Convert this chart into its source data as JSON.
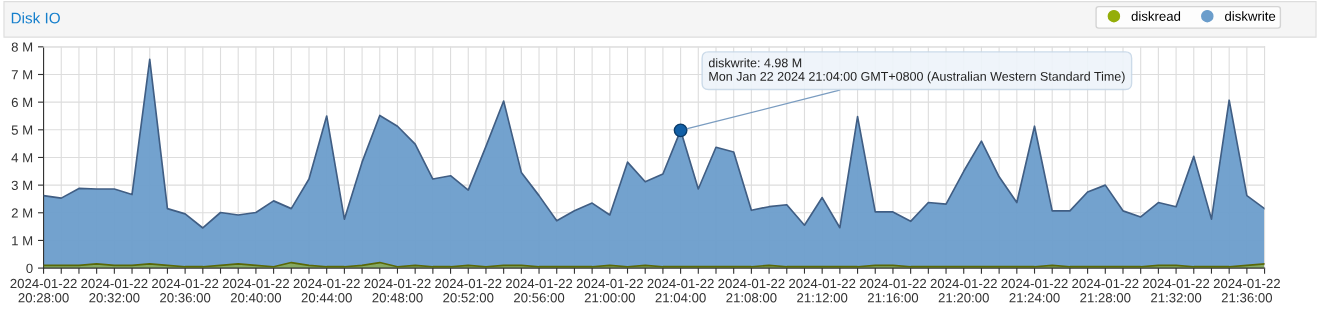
{
  "chart_data": {
    "type": "area",
    "title": "Disk IO",
    "x": [
      "2024-01-22T20:28",
      "2024-01-22T20:29",
      "2024-01-22T20:30",
      "2024-01-22T20:31",
      "2024-01-22T20:32",
      "2024-01-22T20:33",
      "2024-01-22T20:34",
      "2024-01-22T20:35",
      "2024-01-22T20:36",
      "2024-01-22T20:37",
      "2024-01-22T20:38",
      "2024-01-22T20:39",
      "2024-01-22T20:40",
      "2024-01-22T20:41",
      "2024-01-22T20:42",
      "2024-01-22T20:43",
      "2024-01-22T20:44",
      "2024-01-22T20:45",
      "2024-01-22T20:46",
      "2024-01-22T20:47",
      "2024-01-22T20:48",
      "2024-01-22T20:49",
      "2024-01-22T20:50",
      "2024-01-22T20:51",
      "2024-01-22T20:52",
      "2024-01-22T20:53",
      "2024-01-22T20:54",
      "2024-01-22T20:55",
      "2024-01-22T20:56",
      "2024-01-22T20:57",
      "2024-01-22T20:58",
      "2024-01-22T20:59",
      "2024-01-22T21:00",
      "2024-01-22T21:01",
      "2024-01-22T21:02",
      "2024-01-22T21:03",
      "2024-01-22T21:04",
      "2024-01-22T21:05",
      "2024-01-22T21:06",
      "2024-01-22T21:07",
      "2024-01-22T21:08",
      "2024-01-22T21:09",
      "2024-01-22T21:10",
      "2024-01-22T21:11",
      "2024-01-22T21:12",
      "2024-01-22T21:13",
      "2024-01-22T21:14",
      "2024-01-22T21:15",
      "2024-01-22T21:16",
      "2024-01-22T21:17",
      "2024-01-22T21:18",
      "2024-01-22T21:19",
      "2024-01-22T21:20",
      "2024-01-22T21:21",
      "2024-01-22T21:22",
      "2024-01-22T21:23",
      "2024-01-22T21:24",
      "2024-01-22T21:25",
      "2024-01-22T21:26",
      "2024-01-22T21:27",
      "2024-01-22T21:28",
      "2024-01-22T21:29",
      "2024-01-22T21:30",
      "2024-01-22T21:31",
      "2024-01-22T21:32",
      "2024-01-22T21:33",
      "2024-01-22T21:34",
      "2024-01-22T21:35",
      "2024-01-22T21:36",
      "2024-01-22T21:37"
    ],
    "series": [
      {
        "name": "diskread",
        "color": "#94ae0a",
        "values": [
          0.1,
          0.1,
          0.1,
          0.15,
          0.1,
          0.1,
          0.15,
          0.1,
          0.05,
          0.05,
          0.1,
          0.15,
          0.1,
          0.05,
          0.2,
          0.1,
          0.05,
          0.05,
          0.1,
          0.2,
          0.05,
          0.1,
          0.05,
          0.05,
          0.1,
          0.05,
          0.1,
          0.1,
          0.05,
          0.05,
          0.05,
          0.05,
          0.1,
          0.05,
          0.1,
          0.05,
          0.05,
          0.05,
          0.05,
          0.05,
          0.05,
          0.1,
          0.05,
          0.05,
          0.05,
          0.05,
          0.05,
          0.1,
          0.1,
          0.05,
          0.05,
          0.05,
          0.05,
          0.05,
          0.05,
          0.05,
          0.05,
          0.1,
          0.05,
          0.05,
          0.05,
          0.05,
          0.05,
          0.1,
          0.1,
          0.05,
          0.05,
          0.05,
          0.1,
          0.15
        ]
      },
      {
        "name": "diskwrite",
        "color": "#6b9dcb",
        "values": [
          2.62,
          2.53,
          2.88,
          2.86,
          2.86,
          2.66,
          7.55,
          2.15,
          1.96,
          1.45,
          2.01,
          1.92,
          2.01,
          2.43,
          2.15,
          3.22,
          5.5,
          1.77,
          3.83,
          5.52,
          5.13,
          4.48,
          3.22,
          3.34,
          2.82,
          4.4,
          6.04,
          3.46,
          2.62,
          1.71,
          2.07,
          2.35,
          1.92,
          3.83,
          3.12,
          3.4,
          4.98,
          2.86,
          4.37,
          4.2,
          2.09,
          2.22,
          2.29,
          1.55,
          2.55,
          1.46,
          5.48,
          2.03,
          2.03,
          1.69,
          2.37,
          2.31,
          3.5,
          4.59,
          3.3,
          2.37,
          5.13,
          2.07,
          2.07,
          2.75,
          3.0,
          2.07,
          1.85,
          2.37,
          2.22,
          4.04,
          1.77,
          6.07,
          2.62,
          2.15
        ]
      }
    ],
    "annotations": [
      {
        "text": "diskwrite: 4.98 M\nMon Jan 22 2024 21:04:00 GMT+0800 (Australian Western Standard Time)",
        "x": "2024-01-22T21:04",
        "y": 4.98
      }
    ],
    "xlim": [
      "2024-01-22T20:28",
      "2024-01-22T21:37"
    ],
    "xticks": [
      {
        "value": "2024-01-22T20:28",
        "label": "2024-01-22\n20:28:00"
      },
      {
        "value": "2024-01-22T20:29",
        "label": null
      },
      {
        "value": "2024-01-22T20:30",
        "label": null
      },
      {
        "value": "2024-01-22T20:31",
        "label": null
      },
      {
        "value": "2024-01-22T20:32",
        "label": "2024-01-22\n20:32:00"
      },
      {
        "value": "2024-01-22T20:33",
        "label": null
      },
      {
        "value": "2024-01-22T20:34",
        "label": null
      },
      {
        "value": "2024-01-22T20:35",
        "label": null
      },
      {
        "value": "2024-01-22T20:36",
        "label": "2024-01-22\n20:36:00"
      },
      {
        "value": "2024-01-22T20:37",
        "label": null
      },
      {
        "value": "2024-01-22T20:38",
        "label": null
      },
      {
        "value": "2024-01-22T20:39",
        "label": null
      },
      {
        "value": "2024-01-22T20:40",
        "label": "2024-01-22\n20:40:00"
      },
      {
        "value": "2024-01-22T20:41",
        "label": null
      },
      {
        "value": "2024-01-22T20:42",
        "label": null
      },
      {
        "value": "2024-01-22T20:43",
        "label": null
      },
      {
        "value": "2024-01-22T20:44",
        "label": "2024-01-22\n20:44:00"
      },
      {
        "value": "2024-01-22T20:45",
        "label": null
      },
      {
        "value": "2024-01-22T20:46",
        "label": null
      },
      {
        "value": "2024-01-22T20:47",
        "label": null
      },
      {
        "value": "2024-01-22T20:48",
        "label": "2024-01-22\n20:48:00"
      },
      {
        "value": "2024-01-22T20:49",
        "label": null
      },
      {
        "value": "2024-01-22T20:50",
        "label": null
      },
      {
        "value": "2024-01-22T20:51",
        "label": null
      },
      {
        "value": "2024-01-22T20:52",
        "label": "2024-01-22\n20:52:00"
      },
      {
        "value": "2024-01-22T20:53",
        "label": null
      },
      {
        "value": "2024-01-22T20:54",
        "label": null
      },
      {
        "value": "2024-01-22T20:55",
        "label": null
      },
      {
        "value": "2024-01-22T20:56",
        "label": "2024-01-22\n20:56:00"
      },
      {
        "value": "2024-01-22T20:57",
        "label": null
      },
      {
        "value": "2024-01-22T20:58",
        "label": null
      },
      {
        "value": "2024-01-22T20:59",
        "label": null
      },
      {
        "value": "2024-01-22T21:00",
        "label": "2024-01-22\n21:00:00"
      },
      {
        "value": "2024-01-22T21:01",
        "label": null
      },
      {
        "value": "2024-01-22T21:02",
        "label": null
      },
      {
        "value": "2024-01-22T21:03",
        "label": null
      },
      {
        "value": "2024-01-22T21:04",
        "label": "2024-01-22\n21:04:00"
      },
      {
        "value": "2024-01-22T21:05",
        "label": null
      },
      {
        "value": "2024-01-22T21:06",
        "label": null
      },
      {
        "value": "2024-01-22T21:07",
        "label": null
      },
      {
        "value": "2024-01-22T21:08",
        "label": "2024-01-22\n21:08:00"
      },
      {
        "value": "2024-01-22T21:09",
        "label": null
      },
      {
        "value": "2024-01-22T21:10",
        "label": null
      },
      {
        "value": "2024-01-22T21:11",
        "label": null
      },
      {
        "value": "2024-01-22T21:12",
        "label": "2024-01-22\n21:12:00"
      },
      {
        "value": "2024-01-22T21:13",
        "label": null
      },
      {
        "value": "2024-01-22T21:14",
        "label": null
      },
      {
        "value": "2024-01-22T21:15",
        "label": null
      },
      {
        "value": "2024-01-22T21:16",
        "label": "2024-01-22\n21:16:00"
      },
      {
        "value": "2024-01-22T21:17",
        "label": null
      },
      {
        "value": "2024-01-22T21:18",
        "label": null
      },
      {
        "value": "2024-01-22T21:19",
        "label": null
      },
      {
        "value": "2024-01-22T21:20",
        "label": "2024-01-22\n21:20:00"
      },
      {
        "value": "2024-01-22T21:21",
        "label": null
      },
      {
        "value": "2024-01-22T21:22",
        "label": null
      },
      {
        "value": "2024-01-22T21:23",
        "label": null
      },
      {
        "value": "2024-01-22T21:24",
        "label": "2024-01-22\n21:24:00"
      },
      {
        "value": "2024-01-22T21:25",
        "label": null
      },
      {
        "value": "2024-01-22T21:26",
        "label": null
      },
      {
        "value": "2024-01-22T21:27",
        "label": null
      },
      {
        "value": "2024-01-22T21:28",
        "label": "2024-01-22\n21:28:00"
      },
      {
        "value": "2024-01-22T21:29",
        "label": null
      },
      {
        "value": "2024-01-22T21:30",
        "label": null
      },
      {
        "value": "2024-01-22T21:31",
        "label": null
      },
      {
        "value": "2024-01-22T21:32",
        "label": "2024-01-22\n21:32:00"
      },
      {
        "value": "2024-01-22T21:33",
        "label": null
      },
      {
        "value": "2024-01-22T21:34",
        "label": null
      },
      {
        "value": "2024-01-22T21:35",
        "label": null
      },
      {
        "value": "2024-01-22T21:36",
        "label": "2024-01-22\n21:36:00"
      },
      {
        "value": "2024-01-22T21:37",
        "label": null
      }
    ],
    "ylim": [
      0,
      8
    ],
    "yticks": [
      0,
      {
        "value": 1,
        "label": "1 M"
      },
      {
        "value": 2,
        "label": "2 M"
      },
      {
        "value": 3,
        "label": "3 M"
      },
      {
        "value": 4,
        "label": "4 M"
      },
      {
        "value": 5,
        "label": "5 M"
      },
      {
        "value": 6,
        "label": "6 M"
      },
      {
        "value": 7,
        "label": "7 M"
      },
      {
        "value": 8,
        "label": "8 M"
      }
    ],
    "grid": true,
    "legend": "top right"
  }
}
